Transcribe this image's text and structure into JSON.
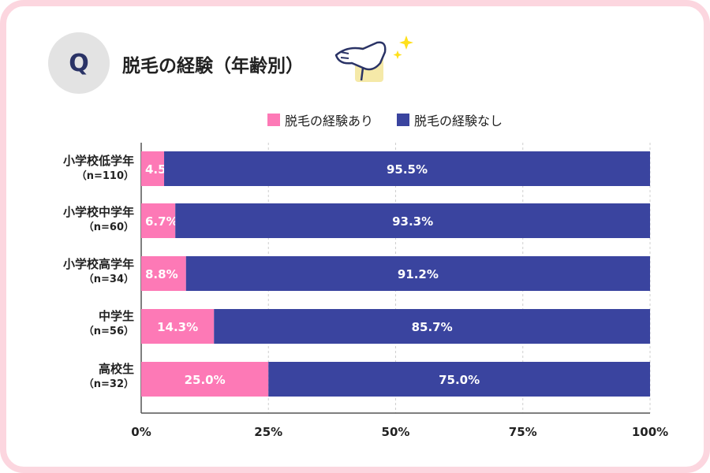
{
  "header": {
    "q_label": "Q",
    "title": "脱毛の経験（年齢別）"
  },
  "colors": {
    "frame": "#fcd6df",
    "experienced": "#fd79b6",
    "not_experienced": "#3a449f",
    "badge": "#e3e3e3"
  },
  "chart_data": {
    "type": "bar",
    "orientation": "horizontal",
    "stacked": true,
    "legend_position": "top-center",
    "grid": true,
    "xlim": [
      0,
      100
    ],
    "x_ticks": [
      "0%",
      "25%",
      "50%",
      "75%",
      "100%"
    ],
    "categories": [
      "小学校低学年",
      "小学校中学年",
      "小学校高学年",
      "中学生",
      "高校生"
    ],
    "sample_sizes": [
      "（n=110）",
      "（n=60）",
      "（n=34）",
      "（n=56）",
      "（n=32）"
    ],
    "series": [
      {
        "name": "脱毛の経験あり",
        "values": [
          4.5,
          6.7,
          8.8,
          14.3,
          25.0
        ],
        "labels": [
          "4.5%",
          "6.7%",
          "8.8%",
          "14.3%",
          "25.0%"
        ]
      },
      {
        "name": "脱毛の経験なし",
        "values": [
          95.5,
          93.3,
          91.2,
          85.7,
          75.0
        ],
        "labels": [
          "95.5%",
          "93.3%",
          "91.2%",
          "85.7%",
          "75.0%"
        ]
      }
    ]
  }
}
